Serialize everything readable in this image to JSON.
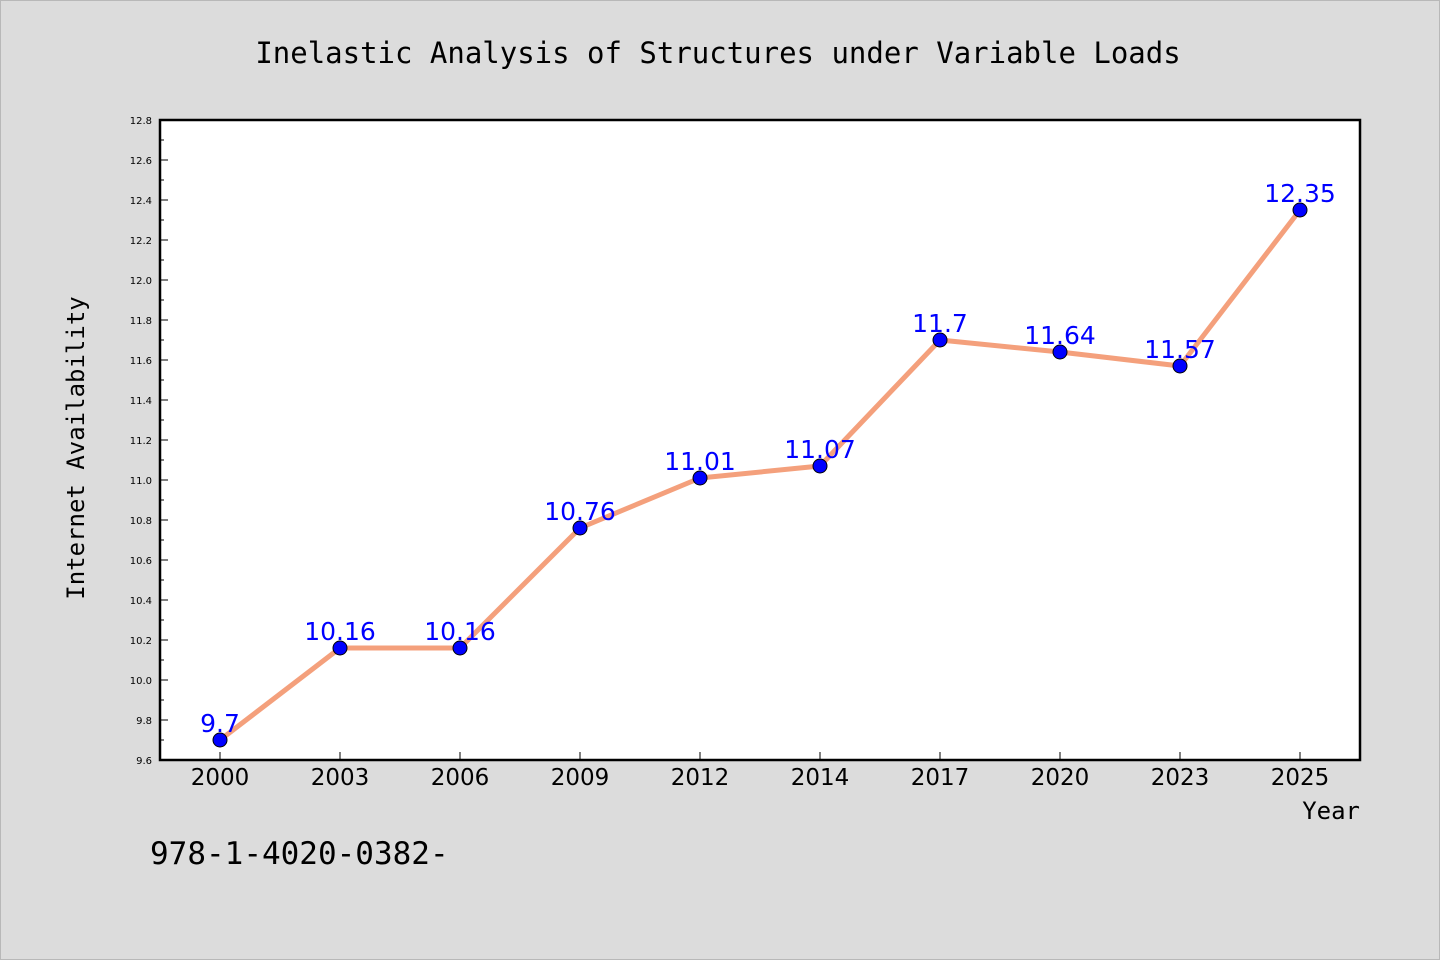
{
  "chart_data": {
    "type": "line",
    "title": "Inelastic Analysis of Structures under Variable Loads",
    "xlabel": "Year",
    "ylabel": "Internet Availability",
    "categories": [
      "2000",
      "2003",
      "2006",
      "2009",
      "2012",
      "2014",
      "2017",
      "2020",
      "2023",
      "2025"
    ],
    "series": [
      {
        "values": [
          9.7,
          10.16,
          10.16,
          10.76,
          11.01,
          11.07,
          11.7,
          11.64,
          11.57,
          12.35
        ],
        "data_labels": [
          "9.7",
          "10.16",
          "10.16",
          "10.76",
          "11.01",
          "11.07",
          "11.7",
          "11.64",
          "11.57",
          "12.35"
        ],
        "line_color": "#f4a07c",
        "marker_color": "#0000ff"
      }
    ],
    "ylim": [
      9.6,
      12.8
    ],
    "yticks": [
      "9.6",
      "9.8",
      "10.0",
      "10.2",
      "10.4",
      "10.6",
      "10.8",
      "11.0",
      "11.2",
      "11.4",
      "11.6",
      "11.8",
      "12.0",
      "12.2",
      "12.4",
      "12.6",
      "12.8"
    ],
    "grid": false,
    "legend": "none"
  },
  "footer_text": "978-1-4020-0382-",
  "colors": {
    "background": "#dcdcdc",
    "plot_background": "#ffffff",
    "line": "#f4a07c",
    "marker": "#0000ff",
    "data_label": "#0000ff"
  }
}
